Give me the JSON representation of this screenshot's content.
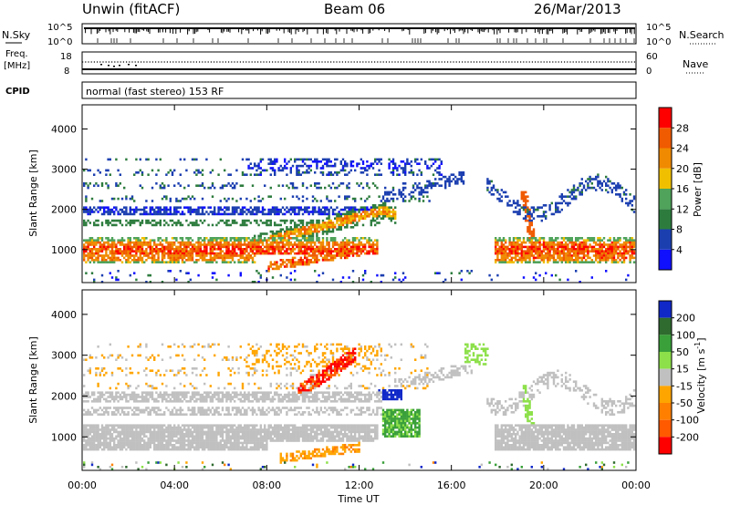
{
  "header": {
    "station": "Unwin (fitACF)",
    "beam": "Beam 06",
    "date": "26/Mar/2013"
  },
  "panels": {
    "nsky": {
      "left_label": "N.Sky",
      "left_ticks": [
        "10^5",
        "10^0"
      ],
      "right_label": "N.Search",
      "right_ticks": [
        "10^5",
        "10^0"
      ]
    },
    "freq": {
      "left_label_1": "Freq.",
      "left_label_2": "[MHz]",
      "left_ticks": [
        "18",
        "8"
      ],
      "right_label": "Nave",
      "right_ticks": [
        "60",
        "0"
      ]
    },
    "cpid": {
      "label": "CPID",
      "text": "normal (fast stereo) 153 RF"
    }
  },
  "colors": {
    "power_scale": [
      "#1010ff",
      "#1c3fb0",
      "#2d7c3e",
      "#4fa35a",
      "#f0c000",
      "#f08a00",
      "#f05a00",
      "#ff0000"
    ],
    "velocity_scale": [
      "#1028c8",
      "#2f6a2f",
      "#3aa03a",
      "#8de04a",
      "#c0c0c0",
      "#ffa500",
      "#ff8000",
      "#ff5a00",
      "#ff0000"
    ]
  },
  "chart_data": [
    {
      "type": "heatmap",
      "quantity": "Power",
      "ylabel": "Slant Range [km]",
      "y_ticks": [
        1000,
        2000,
        3000,
        4000
      ],
      "ylim": [
        180,
        4600
      ],
      "xlim": [
        0,
        24
      ],
      "colorbar": {
        "label": "Power [dB]",
        "ticks": [
          4,
          8,
          12,
          16,
          20,
          24,
          28
        ],
        "range": [
          0,
          32
        ]
      },
      "features": [
        {
          "start_ut": 0,
          "end_ut": 24,
          "range_km": 1000,
          "level_db": 28,
          "desc": "main echo band"
        },
        {
          "start_ut": 0.5,
          "end_ut": 15.5,
          "range_km": 2000,
          "level_db": 6
        },
        {
          "start_ut": 7.5,
          "end_ut": 12.5,
          "range_km": 800,
          "level_db": 24
        },
        {
          "start_ut": 10,
          "end_ut": 16,
          "range_km": 2900,
          "level_db": 4
        }
      ]
    },
    {
      "type": "heatmap",
      "quantity": "Velocity",
      "xlabel": "Time UT",
      "ylabel": "Slant Range [km]",
      "y_ticks": [
        1000,
        2000,
        3000,
        4000
      ],
      "ylim": [
        180,
        4600
      ],
      "xlim": [
        0,
        24
      ],
      "x_ticks": [
        "00:00",
        "04:00",
        "08:00",
        "12:00",
        "16:00",
        "20:00",
        "00:00"
      ],
      "colorbar": {
        "label": "Velocity [m s^-1]",
        "ticks": [
          200,
          100,
          50,
          15,
          -15,
          -50,
          -100,
          -200
        ]
      },
      "features": [
        {
          "start_ut": 0,
          "end_ut": 24,
          "range_km": 1000,
          "velocity": 0,
          "desc": "ground scatter band"
        },
        {
          "start_ut": 9.5,
          "end_ut": 11.5,
          "range_km": 2300,
          "velocity": -250
        },
        {
          "start_ut": 13,
          "end_ut": 14.5,
          "range_km": 1300,
          "velocity": 40
        },
        {
          "start_ut": 8.5,
          "end_ut": 11.5,
          "range_km": 600,
          "velocity": -80
        }
      ]
    }
  ]
}
